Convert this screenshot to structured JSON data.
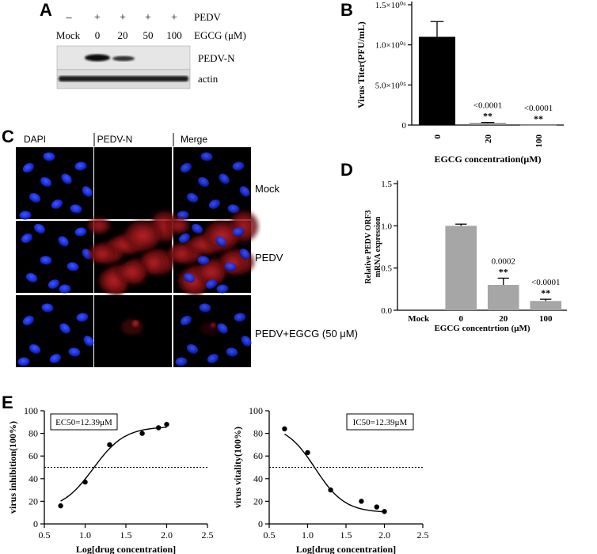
{
  "panels": {
    "A": "A",
    "B": "B",
    "C": "C",
    "D": "D",
    "E": "E"
  },
  "panel_a": {
    "pedv_signs": [
      "–",
      "+",
      "+",
      "+",
      "+"
    ],
    "pedv_label": "PEDV",
    "egcg_values": [
      "Mock",
      "0",
      "20",
      "50",
      "100"
    ],
    "egcg_label": "EGCG (μM)",
    "band_labels": [
      "PEDV-N",
      "actin"
    ]
  },
  "panel_c": {
    "columns": [
      "DAPI",
      "PEDV-N",
      "Merge"
    ],
    "rows": [
      "Mock",
      "PEDV",
      "PEDV+EGCG (50 μM)"
    ]
  },
  "chart_data": [
    {
      "panel": "B",
      "type": "bar",
      "categories": [
        "0",
        "20",
        "100"
      ],
      "values": [
        1100000,
        25000,
        2000
      ],
      "errors": [
        190000,
        8000,
        0
      ],
      "colors": [
        "#000000",
        "#888888",
        "#888888"
      ],
      "annotations": [
        [
          "",
          ""
        ],
        [
          "<0.0001",
          "**"
        ],
        [
          "<0.0001",
          "**"
        ]
      ],
      "ylabel": "Virus Titer(PFU/mL)",
      "xlabel": "EGCG concentration(μM)",
      "ylim": [
        0,
        1500000
      ],
      "yticks": [
        0,
        500000,
        1000000,
        1500000
      ],
      "ytick_labels": [
        "0",
        "5.0×10⁰⁵",
        "1.0×10⁰⁶",
        "1.5×10⁰⁶"
      ]
    },
    {
      "panel": "D",
      "type": "bar",
      "categories": [
        "Mock",
        "0",
        "20",
        "100"
      ],
      "values": [
        0,
        1.0,
        0.3,
        0.11
      ],
      "errors": [
        0,
        0.02,
        0.08,
        0.02
      ],
      "colors": [
        "#a6a6a6",
        "#a6a6a6",
        "#a6a6a6",
        "#a6a6a6"
      ],
      "annotations": [
        [
          "",
          ""
        ],
        [
          "",
          ""
        ],
        [
          "0.0002",
          "**"
        ],
        [
          "<0.0001",
          "**"
        ]
      ],
      "ylabel": [
        "Relative PEDV ORF3",
        "mRNA expression"
      ],
      "xlabel": "EGCG concentrtion (μM)",
      "ylim": [
        0,
        1.5
      ],
      "yticks": [
        0,
        0.5,
        1.0,
        1.5
      ],
      "ytick_labels": [
        "0.0",
        "0.5",
        "1.0",
        "1.5"
      ]
    },
    {
      "panel": "E-left",
      "type": "scatter",
      "x": [
        0.7,
        1.0,
        1.3,
        1.7,
        1.9,
        2.0
      ],
      "y": [
        16,
        37,
        70,
        80,
        85,
        88
      ],
      "fit": "sigmoid-increasing",
      "threshold": 50,
      "annotation": "EC50=12.39μM",
      "ylabel": "virus inhibition(100%)",
      "xlabel": "Log[drug concentration]",
      "xlim": [
        0.5,
        2.5
      ],
      "ylim": [
        0,
        100
      ],
      "xticks": [
        "0.5",
        "1.0",
        "1.5",
        "2.0",
        "2.5"
      ],
      "yticks": [
        "0",
        "20",
        "40",
        "60",
        "80",
        "100"
      ]
    },
    {
      "panel": "E-right",
      "type": "scatter",
      "x": [
        0.7,
        1.0,
        1.3,
        1.7,
        1.9,
        2.0
      ],
      "y": [
        84,
        63,
        30,
        20,
        15,
        11
      ],
      "fit": "sigmoid-decreasing",
      "threshold": 50,
      "annotation": "IC50=12.39μM",
      "ylabel": "virus vitality(100%)",
      "xlabel": "Log[drug concentration]",
      "xlim": [
        0.5,
        2.5
      ],
      "ylim": [
        0,
        100
      ],
      "xticks": [
        "0.5",
        "1.0",
        "1.5",
        "2.0",
        "2.5"
      ],
      "yticks": [
        "0",
        "20",
        "40",
        "60",
        "80",
        "100"
      ]
    }
  ]
}
